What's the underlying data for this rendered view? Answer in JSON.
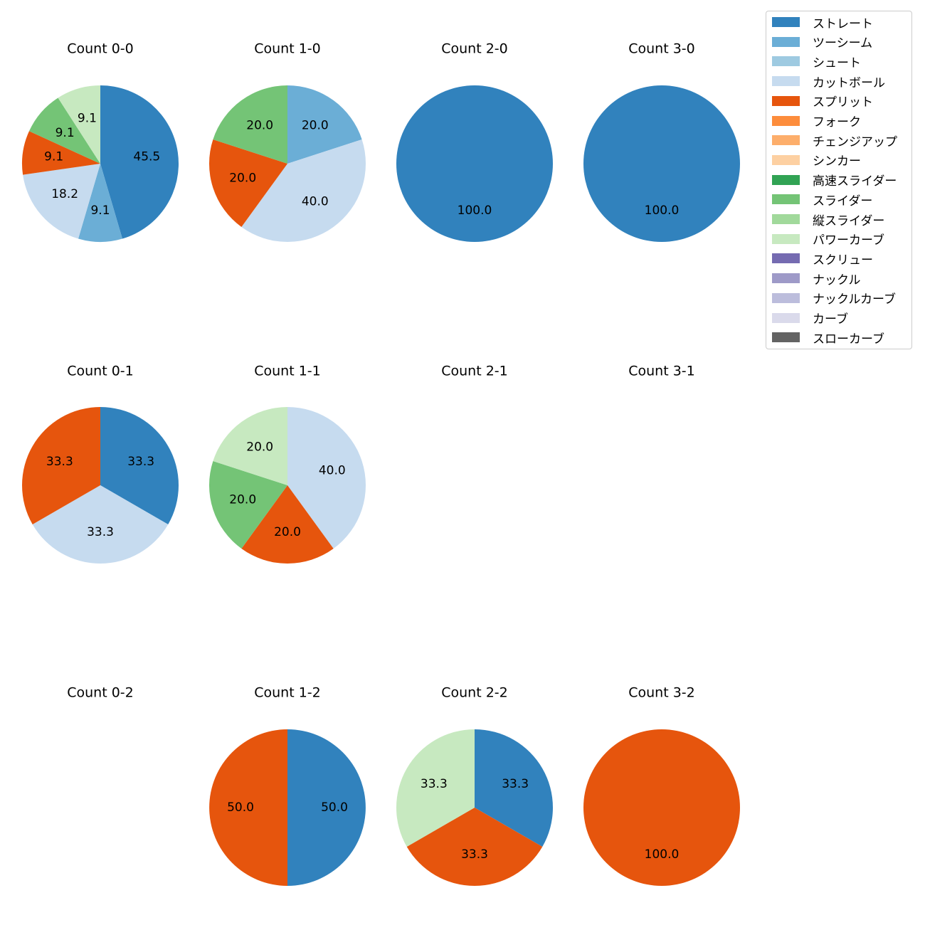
{
  "chart_data": {
    "type": "pie",
    "legend": {
      "placement": "top-right",
      "entries": [
        {
          "label": "ストレート",
          "color": "#3182bd"
        },
        {
          "label": "ツーシーム",
          "color": "#6baed6"
        },
        {
          "label": "シュート",
          "color": "#9ecae1"
        },
        {
          "label": "カットボール",
          "color": "#c6dbef"
        },
        {
          "label": "スプリット",
          "color": "#e6550d"
        },
        {
          "label": "フォーク",
          "color": "#fd8d3c"
        },
        {
          "label": "チェンジアップ",
          "color": "#fdae6b"
        },
        {
          "label": "シンカー",
          "color": "#fdd0a2"
        },
        {
          "label": "高速スライダー",
          "color": "#31a354"
        },
        {
          "label": "スライダー",
          "color": "#74c476"
        },
        {
          "label": "縦スライダー",
          "color": "#a1d99b"
        },
        {
          "label": "パワーカーブ",
          "color": "#c7e9c0"
        },
        {
          "label": "スクリュー",
          "color": "#756bb1"
        },
        {
          "label": "ナックル",
          "color": "#9e9ac8"
        },
        {
          "label": "ナックルカーブ",
          "color": "#bcbddc"
        },
        {
          "label": "カーブ",
          "color": "#dadaeb"
        },
        {
          "label": "スローカーブ",
          "color": "#636363"
        }
      ]
    },
    "pies": [
      {
        "title": "Count 0-0",
        "slices": [
          {
            "pitch": "ストレート",
            "value": 45.5,
            "label": "45.5"
          },
          {
            "pitch": "ツーシーム",
            "value": 9.1,
            "label": "9.1"
          },
          {
            "pitch": "カットボール",
            "value": 18.2,
            "label": "18.2"
          },
          {
            "pitch": "スプリット",
            "value": 9.1,
            "label": "9.1"
          },
          {
            "pitch": "スライダー",
            "value": 9.1,
            "label": "9.1"
          },
          {
            "pitch": "パワーカーブ",
            "value": 9.1,
            "label": "9.1"
          }
        ]
      },
      {
        "title": "Count 1-0",
        "slices": [
          {
            "pitch": "ツーシーム",
            "value": 20.0,
            "label": "20.0"
          },
          {
            "pitch": "カットボール",
            "value": 40.0,
            "label": "40.0"
          },
          {
            "pitch": "スプリット",
            "value": 20.0,
            "label": "20.0"
          },
          {
            "pitch": "スライダー",
            "value": 20.0,
            "label": "20.0"
          }
        ]
      },
      {
        "title": "Count 2-0",
        "slices": [
          {
            "pitch": "ストレート",
            "value": 100.0,
            "label": "100.0"
          }
        ]
      },
      {
        "title": "Count 3-0",
        "slices": [
          {
            "pitch": "ストレート",
            "value": 100.0,
            "label": "100.0"
          }
        ]
      },
      {
        "title": "Count 0-1",
        "slices": [
          {
            "pitch": "ストレート",
            "value": 33.3,
            "label": "33.3"
          },
          {
            "pitch": "カットボール",
            "value": 33.3,
            "label": "33.3"
          },
          {
            "pitch": "スプリット",
            "value": 33.3,
            "label": "33.3"
          }
        ]
      },
      {
        "title": "Count 1-1",
        "slices": [
          {
            "pitch": "カットボール",
            "value": 40.0,
            "label": "40.0"
          },
          {
            "pitch": "スプリット",
            "value": 20.0,
            "label": "20.0"
          },
          {
            "pitch": "スライダー",
            "value": 20.0,
            "label": "20.0"
          },
          {
            "pitch": "パワーカーブ",
            "value": 20.0,
            "label": "20.0"
          }
        ]
      },
      {
        "title": "Count 2-1",
        "slices": []
      },
      {
        "title": "Count 3-1",
        "slices": []
      },
      {
        "title": "Count 0-2",
        "slices": []
      },
      {
        "title": "Count 1-2",
        "slices": [
          {
            "pitch": "ストレート",
            "value": 50.0,
            "label": "50.0"
          },
          {
            "pitch": "スプリット",
            "value": 50.0,
            "label": "50.0"
          }
        ]
      },
      {
        "title": "Count 2-2",
        "slices": [
          {
            "pitch": "ストレート",
            "value": 33.3,
            "label": "33.3"
          },
          {
            "pitch": "スプリット",
            "value": 33.3,
            "label": "33.3"
          },
          {
            "pitch": "パワーカーブ",
            "value": 33.3,
            "label": "33.3"
          }
        ]
      },
      {
        "title": "Count 3-2",
        "slices": [
          {
            "pitch": "スプリット",
            "value": 100.0,
            "label": "100.0"
          }
        ]
      }
    ]
  }
}
